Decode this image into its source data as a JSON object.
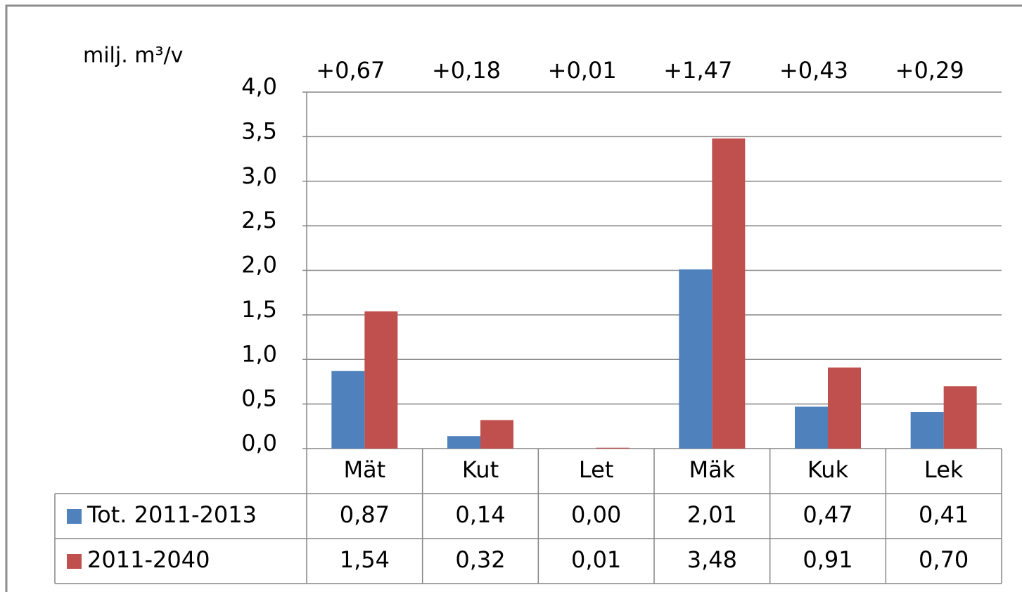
{
  "chart_data": {
    "type": "bar",
    "y_axis_label": "milj. m³/v",
    "categories": [
      "Mät",
      "Kut",
      "Let",
      "Mäk",
      "Kuk",
      "Lek"
    ],
    "annotations": [
      "+0,67",
      "+0,18",
      "+0,01",
      "+1,47",
      "+0,43",
      "+0,29"
    ],
    "series": [
      {
        "name": "Tot. 2011-2013",
        "color": "#4f81bd",
        "values": [
          0.87,
          0.14,
          0.0,
          2.01,
          0.47,
          0.41
        ],
        "value_labels": [
          "0,87",
          "0,14",
          "0,00",
          "2,01",
          "0,47",
          "0,41"
        ]
      },
      {
        "name": "2011-2040",
        "color": "#c0504d",
        "values": [
          1.54,
          0.32,
          0.01,
          3.48,
          0.91,
          0.7
        ],
        "value_labels": [
          "1,54",
          "0,32",
          "0,01",
          "3,48",
          "0,91",
          "0,70"
        ]
      }
    ],
    "ylim": [
      0,
      4
    ],
    "yticks": [
      {
        "value": 0,
        "label": "0,0"
      },
      {
        "value": 0.5,
        "label": "0,5"
      },
      {
        "value": 1,
        "label": "1,0"
      },
      {
        "value": 1.5,
        "label": "1,5"
      },
      {
        "value": 2,
        "label": "2,0"
      },
      {
        "value": 2.5,
        "label": "2,5"
      },
      {
        "value": 3,
        "label": "3,0"
      },
      {
        "value": 3.5,
        "label": "3,5"
      },
      {
        "value": 4,
        "label": "4,0"
      }
    ],
    "grid": true,
    "legend": "table"
  }
}
